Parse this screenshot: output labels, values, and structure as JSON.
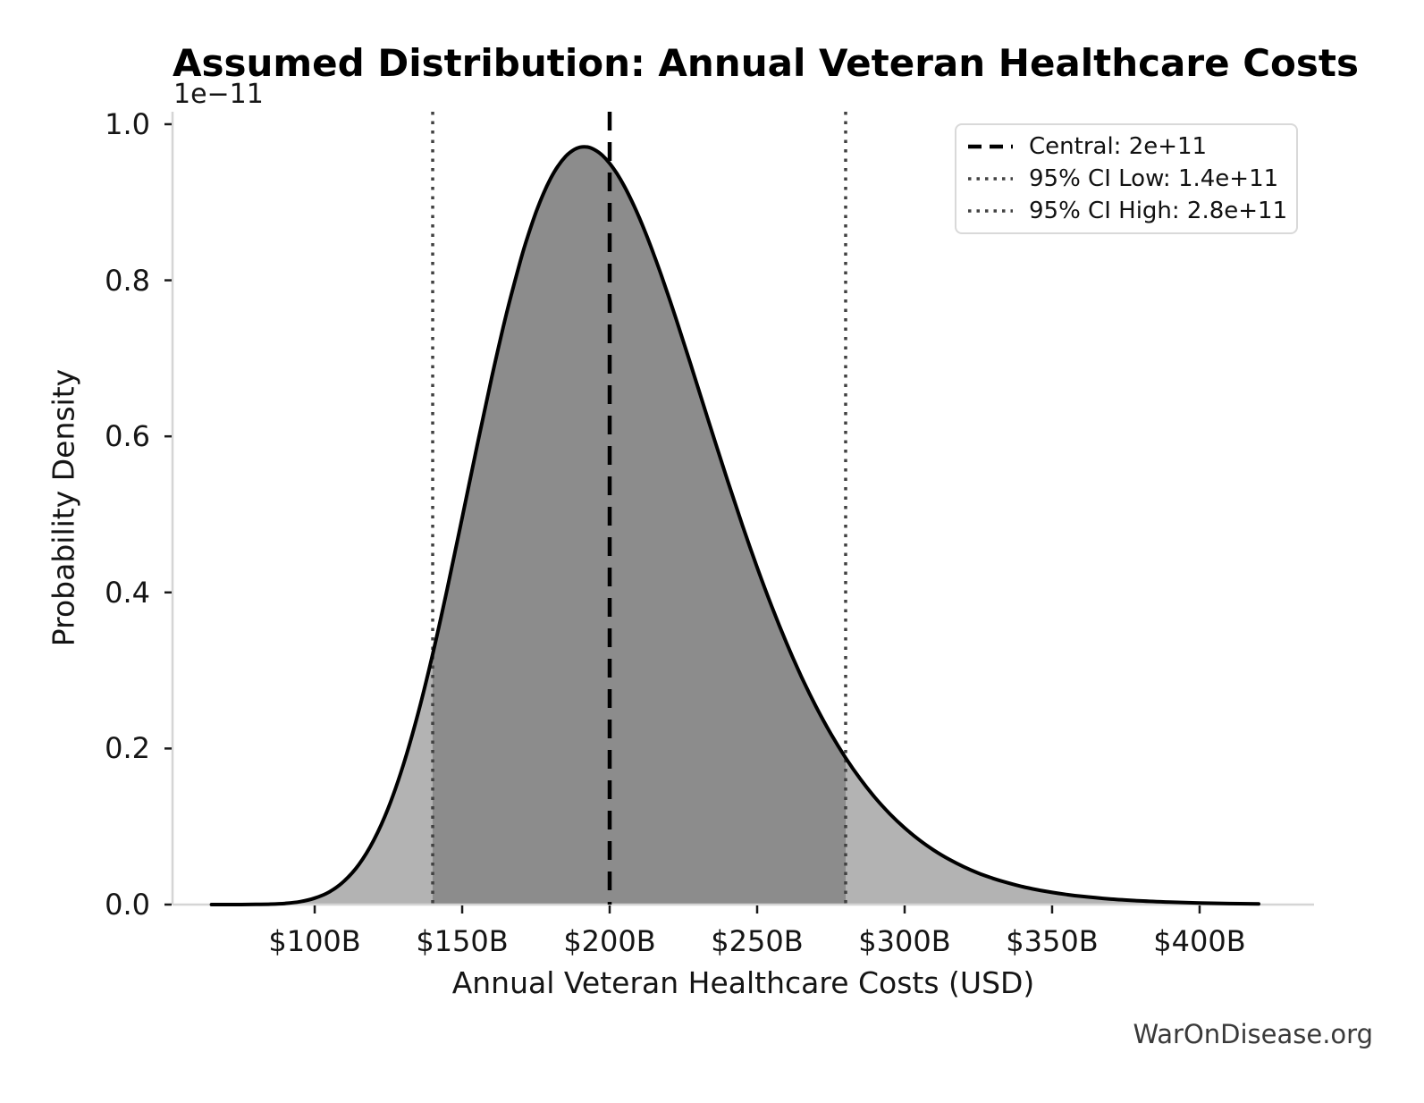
{
  "watermark": "WarOnDisease.org",
  "chart_data": {
    "type": "area",
    "title": "Assumed Distribution: Annual Veteran Healthcare Costs",
    "xlabel": "Annual Veteran Healthcare Costs (USD)",
    "ylabel": "Probability Density",
    "y_offset_label": "1e−11",
    "x_unit": "billions of USD",
    "y_unit": "probability density × 1e-11",
    "xlim": [
      51.8,
      438.8
    ],
    "ylim": [
      0,
      1.016
    ],
    "grid": false,
    "x_ticks": [
      {
        "value": 100,
        "label": "$100B"
      },
      {
        "value": 150,
        "label": "$150B"
      },
      {
        "value": 200,
        "label": "$200B"
      },
      {
        "value": 250,
        "label": "$250B"
      },
      {
        "value": 300,
        "label": "$300B"
      },
      {
        "value": 350,
        "label": "$350B"
      },
      {
        "value": 400,
        "label": "$400B"
      }
    ],
    "y_ticks": [
      {
        "value": 0.0,
        "label": "0.0"
      },
      {
        "value": 0.2,
        "label": "0.2"
      },
      {
        "value": 0.4,
        "label": "0.4"
      },
      {
        "value": 0.6,
        "label": "0.6"
      },
      {
        "value": 0.8,
        "label": "0.8"
      },
      {
        "value": 1.0,
        "label": "1.0"
      }
    ],
    "curve": {
      "x": [
        65,
        70,
        75,
        80,
        85,
        90,
        95,
        100,
        105,
        110,
        115,
        120,
        125,
        130,
        135,
        140,
        145,
        150,
        155,
        160,
        165,
        170,
        172.5,
        175,
        177.5,
        180,
        182.5,
        185,
        187.5,
        190,
        192.5,
        195,
        197.5,
        200,
        202.5,
        205,
        207.5,
        210,
        212.5,
        215,
        217.5,
        220,
        222.5,
        225,
        227.5,
        230,
        235,
        240,
        245,
        250,
        255,
        260,
        265,
        270,
        275,
        280,
        285,
        290,
        295,
        300,
        305,
        310,
        315,
        320,
        325,
        330,
        335,
        340,
        345,
        350,
        355,
        360,
        370,
        380,
        390,
        400,
        410,
        420
      ],
      "y": [
        0.0,
        1e-05,
        5e-05,
        0.0002,
        0.0006,
        0.0015,
        0.0037,
        0.0082,
        0.0163,
        0.0301,
        0.0513,
        0.0822,
        0.1242,
        0.1783,
        0.2442,
        0.3207,
        0.4056,
        0.4956,
        0.5867,
        0.6751,
        0.7569,
        0.8284,
        0.8593,
        0.8869,
        0.9107,
        0.9306,
        0.9465,
        0.9585,
        0.9664,
        0.9705,
        0.9707,
        0.9671,
        0.9602,
        0.9499,
        0.9365,
        0.9203,
        0.9015,
        0.8806,
        0.8575,
        0.8327,
        0.8065,
        0.779,
        0.7506,
        0.7214,
        0.6918,
        0.6619,
        0.602,
        0.543,
        0.4861,
        0.4321,
        0.3815,
        0.3348,
        0.292,
        0.2534,
        0.2188,
        0.188,
        0.1608,
        0.1369,
        0.1162,
        0.0982,
        0.0827,
        0.0694,
        0.0581,
        0.0485,
        0.0402,
        0.0335,
        0.0278,
        0.0229,
        0.0189,
        0.0156,
        0.0128,
        0.0105,
        0.007,
        0.0047,
        0.0031,
        0.002,
        0.0013,
        0.0009
      ]
    },
    "shaded_ci_region": {
      "from": 140,
      "to": 280
    },
    "vlines": [
      {
        "value": 200,
        "style": "dashed",
        "color": "#000000",
        "label": "Central: 2e+11"
      },
      {
        "value": 140,
        "style": "dotted",
        "color": "#414141",
        "label": "95% CI Low: 1.4e+11"
      },
      {
        "value": 280,
        "style": "dotted",
        "color": "#414141",
        "label": "95% CI High: 2.8e+11"
      }
    ],
    "legend": {
      "position": "upper right",
      "items": [
        {
          "label": "Central: 2e+11",
          "style": "dashed",
          "color": "#000000"
        },
        {
          "label": "95% CI Low: 1.4e+11",
          "style": "dotted",
          "color": "#414141"
        },
        {
          "label": "95% CI High: 2.8e+11",
          "style": "dotted",
          "color": "#414141"
        }
      ]
    },
    "colors": {
      "curve": "#000000",
      "fill_light": "#b3b3b3",
      "fill_dark": "#8c8c8c",
      "spine": "#d5d5d5",
      "tick": "#1a1a1a"
    }
  }
}
